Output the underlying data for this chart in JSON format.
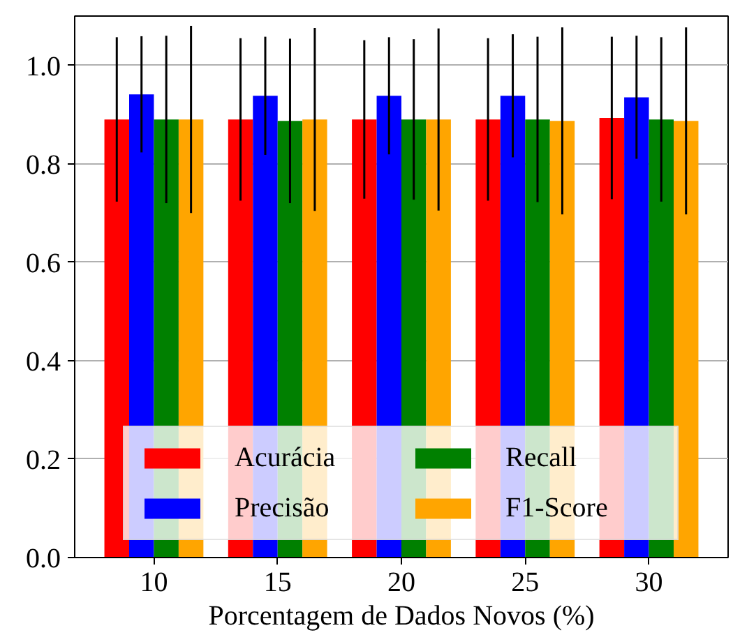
{
  "chart_data": {
    "type": "bar",
    "xlabel": "Porcentagem de Dados Novos (%)",
    "categories": [
      "10",
      "15",
      "20",
      "25",
      "30"
    ],
    "series": [
      {
        "name": "Acurácia",
        "color": "#ff0000",
        "values": [
          0.89,
          0.89,
          0.89,
          0.89,
          0.893
        ],
        "errors": [
          0.167,
          0.165,
          0.161,
          0.165,
          0.165
        ]
      },
      {
        "name": "Precisão",
        "color": "#0000ff",
        "values": [
          0.941,
          0.938,
          0.938,
          0.938,
          0.935
        ],
        "errors": [
          0.118,
          0.12,
          0.119,
          0.125,
          0.125
        ]
      },
      {
        "name": "Recall",
        "color": "#008000",
        "values": [
          0.89,
          0.887,
          0.89,
          0.89,
          0.89
        ],
        "errors": [
          0.17,
          0.167,
          0.163,
          0.168,
          0.167
        ]
      },
      {
        "name": "F1-Score",
        "color": "#ffa500",
        "values": [
          0.89,
          0.89,
          0.89,
          0.887,
          0.887
        ],
        "errors": [
          0.19,
          0.186,
          0.185,
          0.19,
          0.19
        ]
      }
    ],
    "ylim": [
      0,
      1.1
    ],
    "yticks": [
      {
        "value": 0,
        "label": "0.0"
      },
      0.2,
      0.4,
      0.6,
      0.8,
      {
        "value": 1,
        "label": "1.0"
      }
    ],
    "grid": "y",
    "legend": "bottom"
  }
}
